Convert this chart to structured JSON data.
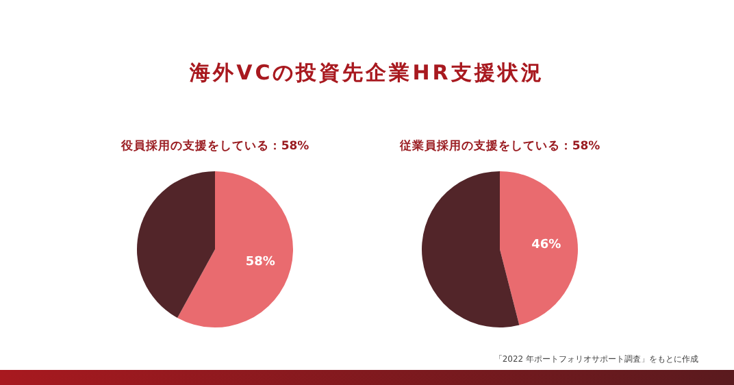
{
  "chart_data": [
    {
      "type": "pie",
      "title": "海外VCの投資先企業HR支援状況",
      "subtitle": "役員採用の支援をしている：58%",
      "categories": [
        null,
        null
      ],
      "values": [
        58,
        42
      ],
      "colors": [
        "#e96b6f",
        "#522529"
      ],
      "value_labels": [
        "58%",
        null
      ]
    },
    {
      "type": "pie",
      "subtitle": "従業員採用の支援をしている：58%",
      "categories": [
        null,
        null
      ],
      "values": [
        46,
        54
      ],
      "colors": [
        "#e96b6f",
        "#522529"
      ],
      "value_labels": [
        "46%",
        null
      ],
      "annotations": [
        "「2022 年ポートフォリオサポート調査」をもとに作成"
      ]
    }
  ]
}
